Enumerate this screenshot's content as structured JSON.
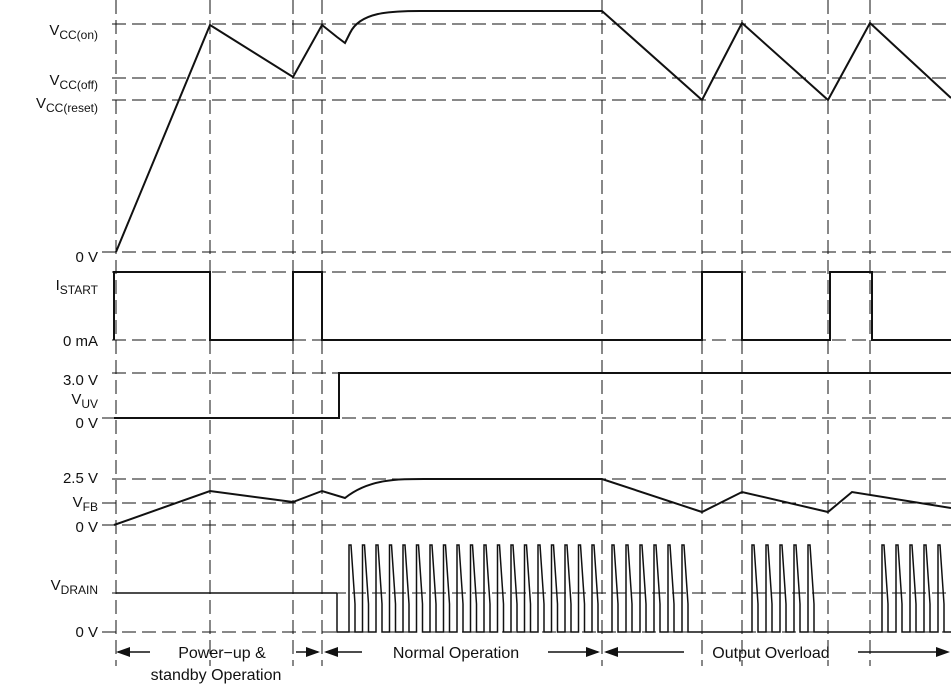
{
  "colors": {
    "background": "#ffffff",
    "ink": "#111111"
  },
  "signals": {
    "vcc": {
      "label_main": "V",
      "levels": [
        {
          "key": "on",
          "main": "V",
          "sub": "CC(on)"
        },
        {
          "key": "off",
          "main": "V",
          "sub": "CC(off)"
        },
        {
          "key": "reset",
          "main": "V",
          "sub": "CC(reset)"
        },
        {
          "key": "zero",
          "main": "0 V",
          "sub": ""
        }
      ]
    },
    "istart": {
      "levels": [
        {
          "key": "high",
          "main": "I",
          "sub": "START"
        },
        {
          "key": "zero",
          "main": "0 mA",
          "sub": ""
        }
      ]
    },
    "uv": {
      "levels": [
        {
          "key": "v3",
          "main": "3.0 V",
          "sub": ""
        },
        {
          "key": "vuv",
          "main": "V",
          "sub": "UV"
        },
        {
          "key": "zero",
          "main": "0 V",
          "sub": ""
        }
      ]
    },
    "fb": {
      "levels": [
        {
          "key": "v25",
          "main": "2.5 V",
          "sub": ""
        },
        {
          "key": "vfb",
          "main": "V",
          "sub": "FB"
        },
        {
          "key": "zero",
          "main": "0 V",
          "sub": ""
        }
      ]
    },
    "drain": {
      "levels": [
        {
          "key": "vdrain",
          "main": "V",
          "sub": "DRAIN"
        },
        {
          "key": "zero",
          "main": "0 V",
          "sub": ""
        }
      ]
    }
  },
  "phases": {
    "powerup_line1": "Power−up &",
    "powerup_line2": "standby Operation",
    "normal": "Normal Operation",
    "overload": "Output Overload"
  }
}
